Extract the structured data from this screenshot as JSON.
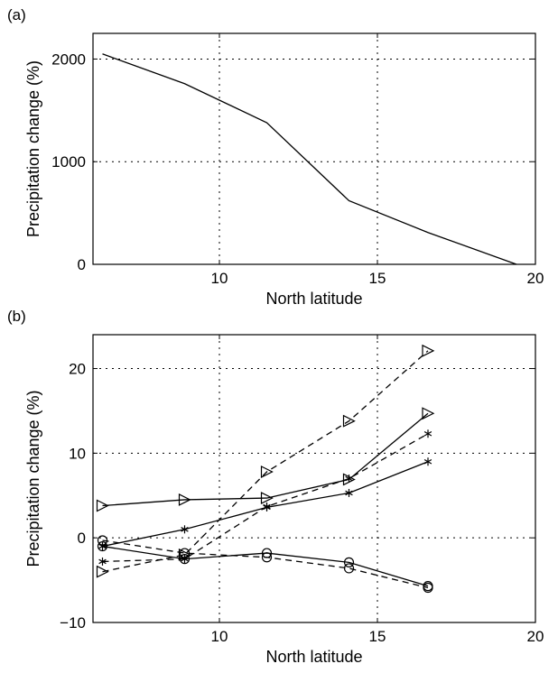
{
  "chart_data": [
    {
      "type": "line",
      "panel_label": "(a)",
      "xlabel": "North latitude",
      "ylabel": "Precipitation change (%)",
      "xlim": [
        6,
        20
      ],
      "ylim": [
        0,
        2250
      ],
      "xticks": [
        10,
        15,
        20
      ],
      "yticks": [
        0,
        1000,
        2000
      ],
      "grid": true,
      "series": [
        {
          "x": [
            6.3,
            8.9,
            11.5,
            14.1,
            16.6,
            19.4
          ],
          "values": [
            2050,
            1760,
            1380,
            620,
            310,
            0
          ],
          "style": "solid",
          "marker": "none"
        }
      ]
    },
    {
      "type": "line",
      "panel_label": "(b)",
      "xlabel": "North latitude",
      "ylabel": "Precipitation change (%)",
      "xlim": [
        6,
        20
      ],
      "ylim": [
        -10,
        24
      ],
      "xticks": [
        10,
        15,
        20
      ],
      "yticks": [
        -10,
        0,
        10,
        20
      ],
      "ytick_labels": [
        "−10",
        "0",
        "10",
        "20"
      ],
      "grid": true,
      "series": [
        {
          "x": [
            6.3,
            8.9,
            11.5,
            14.1,
            16.6
          ],
          "values": [
            3.8,
            4.5,
            4.7,
            6.9,
            14.7
          ],
          "style": "solid",
          "marker": "triangle-right"
        },
        {
          "x": [
            6.3,
            8.9,
            11.5,
            14.1,
            16.6
          ],
          "values": [
            -4.0,
            -2.0,
            7.8,
            13.8,
            22.1
          ],
          "style": "dashed",
          "marker": "triangle-right"
        },
        {
          "x": [
            6.3,
            8.9,
            11.5,
            14.1,
            16.6
          ],
          "values": [
            -1.0,
            1.0,
            3.6,
            5.3,
            9.0
          ],
          "style": "solid",
          "marker": "asterisk"
        },
        {
          "x": [
            6.3,
            8.9,
            11.5,
            14.1,
            16.6
          ],
          "values": [
            -2.8,
            -2.5,
            3.7,
            7.0,
            12.3
          ],
          "style": "dashed",
          "marker": "asterisk"
        },
        {
          "x": [
            6.3,
            8.9,
            11.5,
            14.1,
            16.6
          ],
          "values": [
            -1.0,
            -2.5,
            -1.8,
            -2.9,
            -5.7
          ],
          "style": "solid",
          "marker": "circle"
        },
        {
          "x": [
            6.3,
            8.9,
            11.5,
            14.1,
            16.6
          ],
          "values": [
            -0.3,
            -1.8,
            -2.3,
            -3.6,
            -5.9
          ],
          "style": "dashed",
          "marker": "circle"
        }
      ]
    }
  ]
}
